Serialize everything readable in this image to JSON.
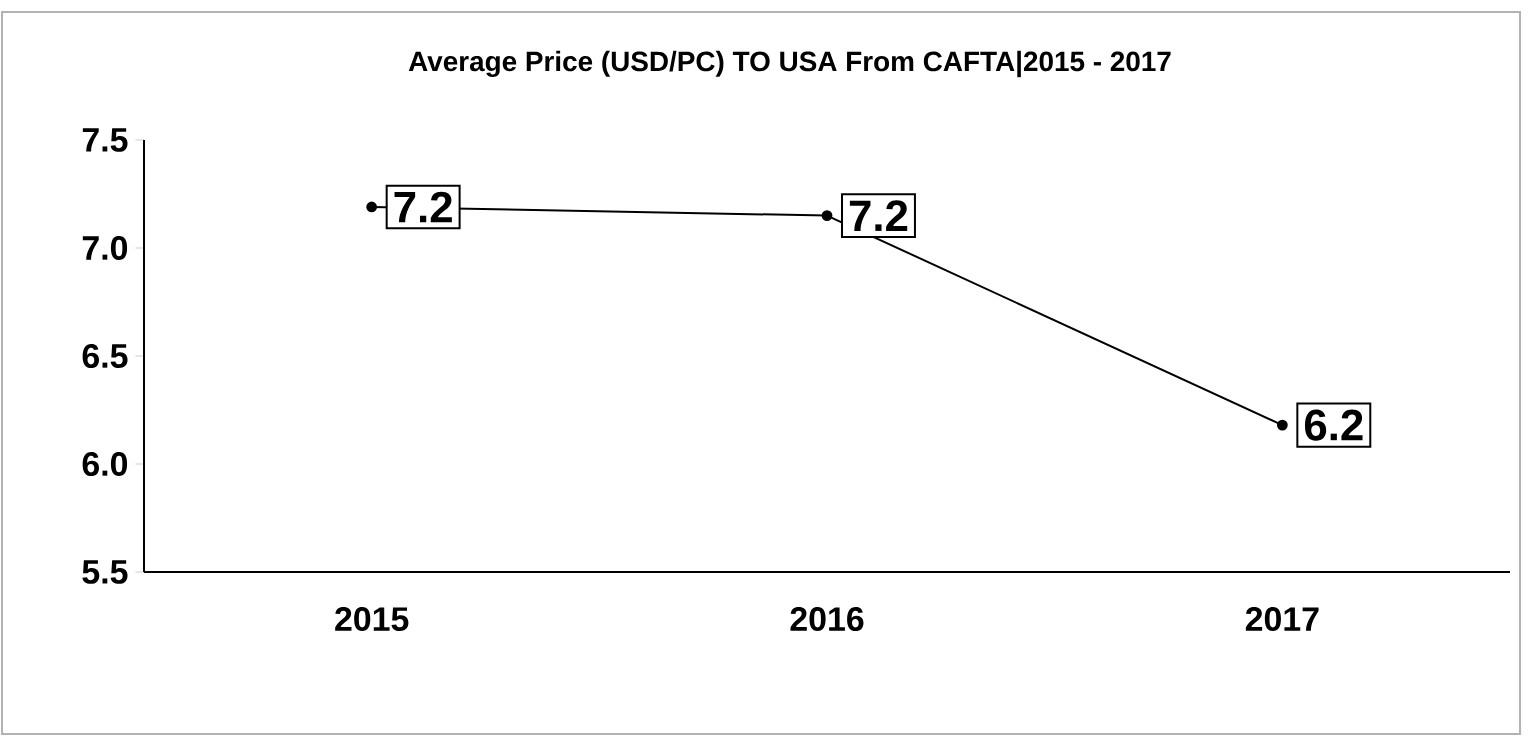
{
  "chart_data": {
    "type": "line",
    "title": "Average Price (USD/PC) TO USA From CAFTA|2015 - 2017",
    "categories": [
      "2015",
      "2016",
      "2017"
    ],
    "series": [
      {
        "color": "#000000",
        "values": [
          7.19,
          7.15,
          6.18
        ],
        "value_labels": [
          "7.2",
          "7.2",
          "6.2"
        ]
      }
    ],
    "ylim": [
      5.5,
      7.5
    ],
    "yticks": [
      {
        "value": 5.5,
        "label": "5.5"
      },
      {
        "value": 6.0,
        "label": "6.0"
      },
      {
        "value": 6.5,
        "label": "6.5"
      },
      {
        "value": 7.0,
        "label": "7.0"
      },
      {
        "value": 7.5,
        "label": "7.5"
      }
    ],
    "marker": "circle",
    "line_style": "solid",
    "grid": false
  }
}
